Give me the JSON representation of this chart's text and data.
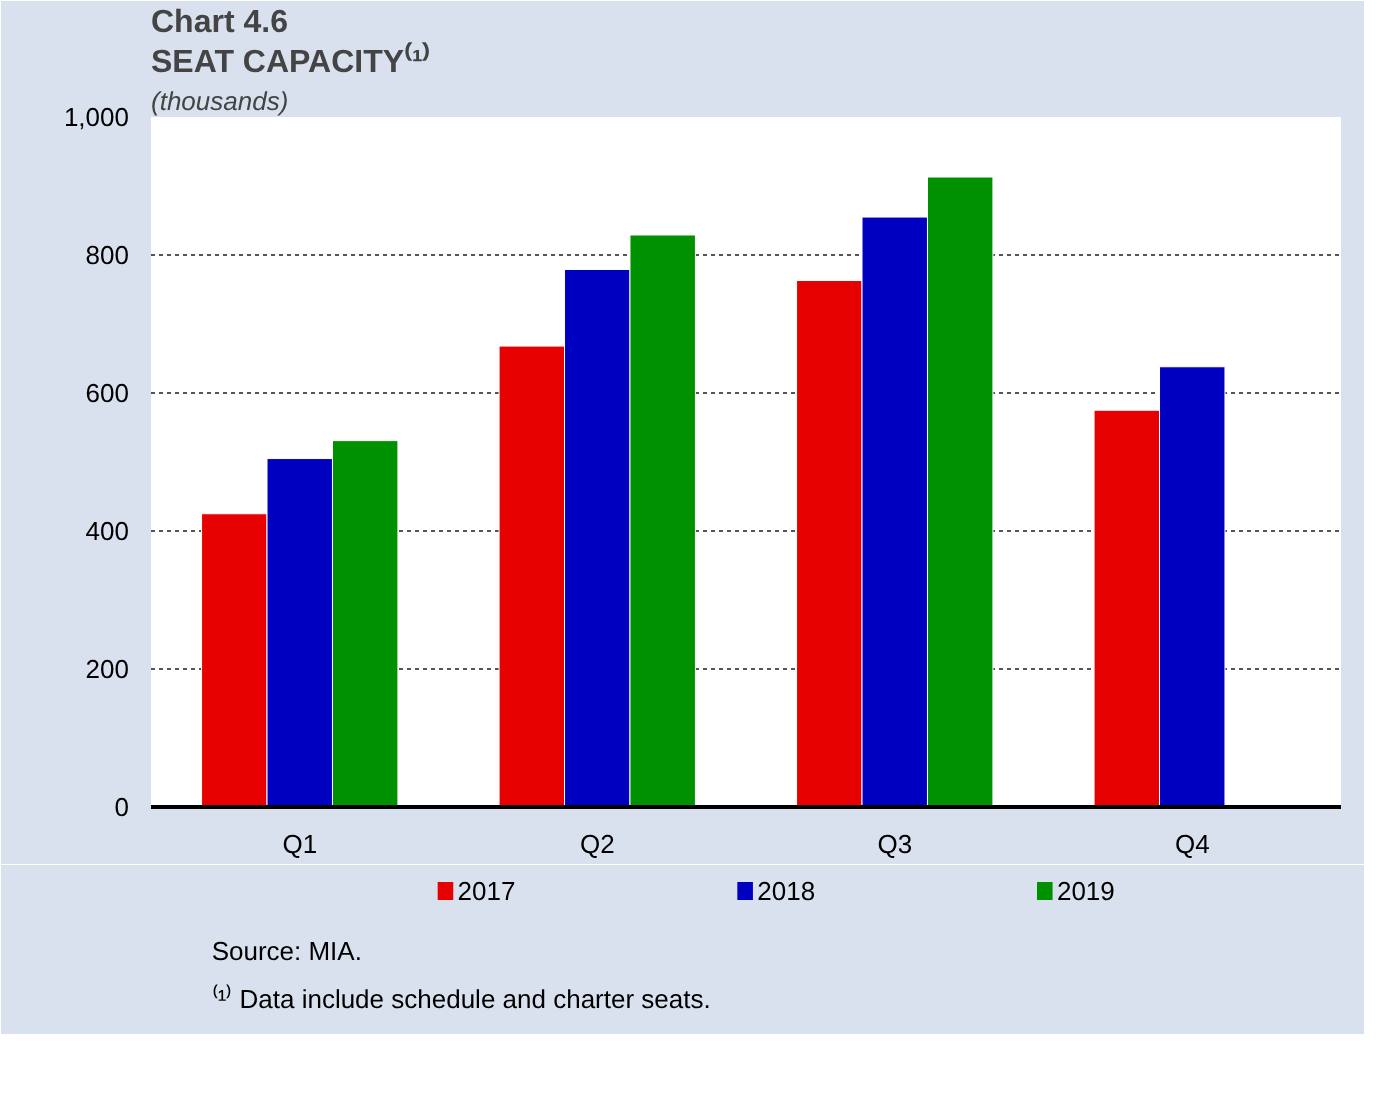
{
  "chart_data": {
    "type": "bar",
    "title": "Chart 4.6",
    "subtitle": "SEAT CAPACITY⁽¹⁾",
    "ylabel": "(thousands)",
    "categories": [
      "Q1",
      "Q2",
      "Q3",
      "Q4"
    ],
    "series": [
      {
        "name": "2017",
        "color": "#e60000",
        "values": [
          425,
          668,
          763,
          575
        ]
      },
      {
        "name": "2018",
        "color": "#0000c0",
        "values": [
          505,
          779,
          855,
          638
        ]
      },
      {
        "name": "2019",
        "color": "#009100",
        "values": [
          531,
          829,
          913,
          null
        ]
      }
    ],
    "ylim": [
      0,
      1000
    ],
    "yticks": [
      0,
      200,
      400,
      600,
      800,
      {
        "value": 1000,
        "label": "1,000"
      }
    ],
    "grid": "y",
    "legend": "bottom",
    "annotations": [
      "Source: MIA.",
      "⁽¹⁾ Data include schedule and charter seats."
    ]
  }
}
